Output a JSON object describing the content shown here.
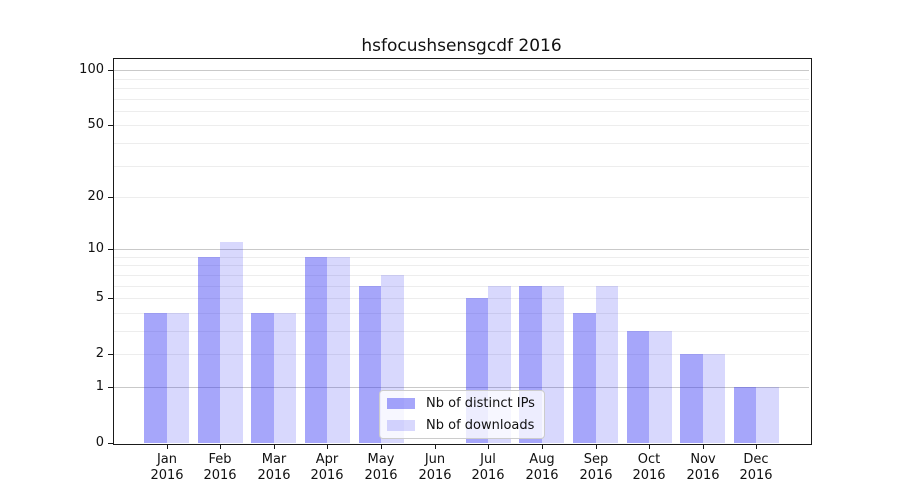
{
  "chart_data": {
    "type": "bar",
    "title": "hsfocushsensgcdf 2016",
    "categories": [
      "Jan",
      "Feb",
      "Mar",
      "Apr",
      "May",
      "Jun",
      "Jul",
      "Aug",
      "Sep",
      "Oct",
      "Nov",
      "Dec"
    ],
    "category_year": "2016",
    "series": [
      {
        "name": "Nb of distinct IPs",
        "color": "#a8a8f5",
        "fill": "rgba(48,48,243,0.43)",
        "values": [
          4,
          9,
          4,
          9,
          6,
          0,
          5,
          6,
          4,
          3,
          2,
          1
        ]
      },
      {
        "name": "Nb of downloads",
        "color": "#d8d8fa",
        "fill": "rgba(40,40,245,0.18)",
        "values": [
          4,
          11,
          4,
          9,
          7,
          0,
          6,
          6,
          6,
          3,
          2,
          1
        ]
      }
    ],
    "xlabel": "",
    "ylabel": "",
    "y_scale": "symlog (position proportional to ln(1+v))",
    "y_ticks": [
      0,
      1,
      2,
      5,
      10,
      20,
      50,
      100
    ],
    "y_major_gridlines": [
      1,
      10,
      100
    ],
    "y_minor_gridlines": [
      2,
      3,
      4,
      5,
      6,
      7,
      8,
      9,
      20,
      30,
      40,
      50,
      60,
      70,
      80,
      90
    ],
    "ylim": [
      0,
      115
    ],
    "grid": "horizontal",
    "legend_position": "inside lower-center",
    "colors": {
      "grid_minor": "#ededed",
      "grid_major": "#c9c9c9",
      "spine": "#1a1a1a",
      "text": "#111111",
      "background": "#ffffff"
    }
  }
}
